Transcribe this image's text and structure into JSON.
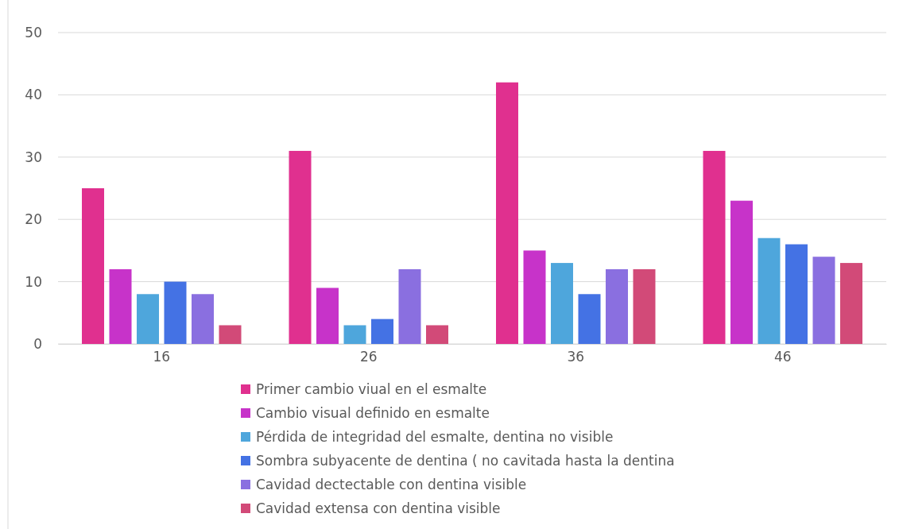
{
  "chart_data": {
    "type": "bar",
    "categories": [
      "16",
      "26",
      "36",
      "46"
    ],
    "series": [
      {
        "name": "Primer cambio viual en el esmalte",
        "color": "#e0308f",
        "values": [
          25,
          31,
          42,
          31
        ]
      },
      {
        "name": "Cambio visual definido en esmalte",
        "color": "#c733c9",
        "values": [
          12,
          9,
          15,
          23
        ]
      },
      {
        "name": "Pérdida de integridad del esmalte, dentina no visible",
        "color": "#4ea6dc",
        "values": [
          8,
          3,
          13,
          17
        ]
      },
      {
        "name": "Sombra subyacente de dentina ( no cavitada hasta la dentina",
        "color": "#4472e4",
        "values": [
          10,
          4,
          8,
          16
        ]
      },
      {
        "name": "Cavidad dectectable con dentina visible",
        "color": "#8a6fe0",
        "values": [
          8,
          12,
          12,
          14
        ]
      },
      {
        "name": "Cavidad extensa con dentina visible",
        "color": "#d24a78",
        "values": [
          3,
          3,
          12,
          13
        ]
      }
    ],
    "ylim": [
      0,
      50
    ],
    "yticks": [
      0,
      10,
      20,
      30,
      40,
      50
    ],
    "grid": "y",
    "legend": "bottom"
  }
}
